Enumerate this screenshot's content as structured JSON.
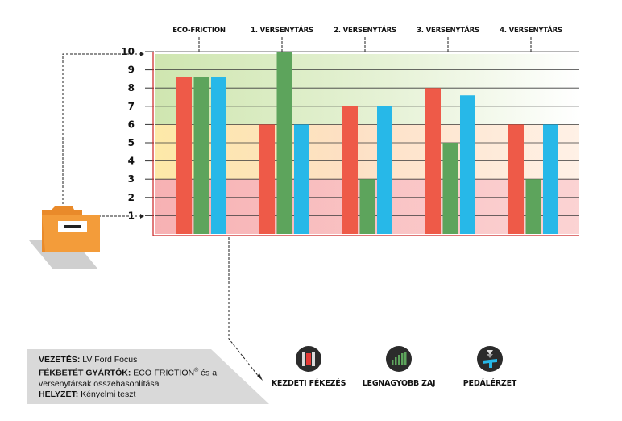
{
  "chart_data": {
    "type": "bar",
    "categories": [
      "ECO-FRICTION",
      "1. VERSENYTÁRS",
      "2. VERSENYTÁRS",
      "3. VERSENYTÁRS",
      "4. VERSENYTÁRS"
    ],
    "series": [
      {
        "name": "KEZDETI FÉKEZÉS",
        "color": "#ee5a48",
        "values": [
          8.6,
          6.0,
          7.0,
          8.0,
          6.0
        ]
      },
      {
        "name": "LEGNAGYOBB ZAJ",
        "color": "#5da45c",
        "values": [
          8.6,
          10.0,
          3.0,
          5.0,
          3.0
        ]
      },
      {
        "name": "PEDÁLÉRZET",
        "color": "#27b8e8",
        "values": [
          8.6,
          6.0,
          7.0,
          7.6,
          6.0
        ]
      }
    ],
    "yticks": [
      "1",
      "2",
      "3",
      "4",
      "5",
      "6",
      "7",
      "8",
      "9",
      "10"
    ],
    "ylim": [
      0,
      10
    ],
    "zones": [
      {
        "from": 0,
        "to": 3,
        "color": "#f9bcbc"
      },
      {
        "from": 3,
        "to": 6,
        "color": "#fde0c0"
      },
      {
        "from": 6,
        "to": 10,
        "color": "#d2e9b8"
      }
    ]
  },
  "info": {
    "line1_label": "VEZETÉS:",
    "line1_value": " LV Ford Focus",
    "line2_label": "FÉKBETÉT GYÁRTÓK:",
    "line2_value": " ECO-FRICTION",
    "line2_sup": "®",
    "line2_rest": " és a versenytársak összehasonlítása",
    "line3_label": "HELYZET:",
    "line3_value": " Kényelmi teszt"
  },
  "legend": [
    {
      "label": "KEZDETI FÉKEZÉS",
      "icon": "initial-braking-icon"
    },
    {
      "label": "LEGNAGYOBB ZAJ",
      "icon": "noise-icon"
    },
    {
      "label": "PEDÁLÉRZET",
      "icon": "pedal-feel-icon"
    }
  ],
  "colors": {
    "axis": "#cc2222",
    "folder": "#f39c3a",
    "info_bg": "#d9d9d9",
    "icon_bg": "#2b2b2b"
  }
}
